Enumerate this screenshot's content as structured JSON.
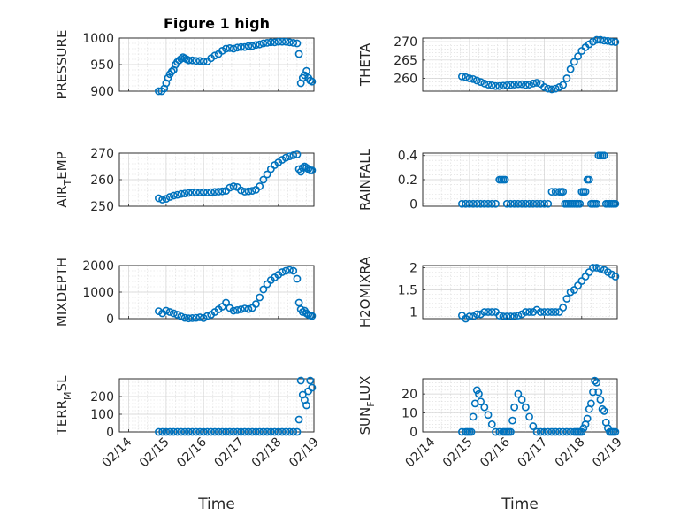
{
  "title": "Figure 1 high",
  "marker_color": "#0072BD",
  "xticks": [
    "02/14",
    "02/15",
    "02/16",
    "02/17",
    "02/18",
    "02/19"
  ],
  "xlabel": "Time",
  "chart_data": [
    {
      "type": "scatter",
      "ylabel": "PRESSURE",
      "xlim": [
        -0.25,
        4.95
      ],
      "ylim": [
        900,
        1000
      ],
      "yticks": [
        900,
        950,
        1000
      ],
      "x": [
        0.8,
        0.88,
        0.95,
        1.0,
        1.05,
        1.1,
        1.15,
        1.2,
        1.25,
        1.3,
        1.35,
        1.4,
        1.45,
        1.5,
        1.55,
        1.6,
        1.7,
        1.8,
        1.9,
        2.0,
        2.1,
        2.2,
        2.3,
        2.4,
        2.5,
        2.6,
        2.7,
        2.8,
        2.9,
        3.0,
        3.1,
        3.2,
        3.3,
        3.4,
        3.5,
        3.6,
        3.7,
        3.8,
        3.9,
        4.0,
        4.1,
        4.2,
        4.3,
        4.4,
        4.5,
        4.55,
        4.6,
        4.65,
        4.7,
        4.75,
        4.8,
        4.85,
        4.9
      ],
      "y": [
        900,
        900,
        905,
        915,
        925,
        932,
        937,
        940,
        950,
        955,
        958,
        961,
        964,
        962,
        960,
        958,
        958,
        957,
        957,
        956,
        956,
        962,
        967,
        970,
        976,
        980,
        981,
        980,
        982,
        983,
        983,
        985,
        985,
        987,
        988,
        990,
        991,
        992,
        992,
        993,
        993,
        993,
        992,
        991,
        990,
        970,
        915,
        925,
        930,
        938,
        925,
        920,
        918
      ]
    },
    {
      "type": "scatter",
      "ylabel": "THETA",
      "xlim": [
        -0.25,
        4.95
      ],
      "ylim": [
        256.5,
        271
      ],
      "yticks": [
        260,
        265,
        270
      ],
      "x": [
        0.8,
        0.9,
        1.0,
        1.1,
        1.2,
        1.3,
        1.4,
        1.5,
        1.6,
        1.7,
        1.8,
        1.9,
        2.0,
        2.1,
        2.2,
        2.3,
        2.4,
        2.5,
        2.6,
        2.7,
        2.8,
        2.9,
        3.0,
        3.1,
        3.2,
        3.3,
        3.4,
        3.5,
        3.6,
        3.7,
        3.8,
        3.9,
        4.0,
        4.1,
        4.2,
        4.3,
        4.4,
        4.5,
        4.6,
        4.7,
        4.8,
        4.9
      ],
      "y": [
        260.5,
        260.3,
        260.0,
        259.8,
        259.4,
        259.0,
        258.6,
        258.3,
        258.1,
        257.9,
        257.9,
        258.0,
        258.1,
        258.2,
        258.3,
        258.4,
        258.4,
        258.2,
        258.3,
        258.6,
        258.8,
        258.5,
        257.6,
        257.2,
        257.0,
        257.2,
        257.6,
        258.2,
        260.0,
        262.5,
        264.5,
        266.0,
        267.5,
        268.5,
        269.3,
        270.0,
        270.5,
        270.5,
        270.3,
        270.2,
        270.0,
        269.9
      ]
    },
    {
      "type": "scatter",
      "ylabel": "AIR_TEMP",
      "xlim": [
        -0.25,
        4.95
      ],
      "ylim": [
        250,
        270
      ],
      "yticks": [
        250,
        260,
        270
      ],
      "x": [
        0.8,
        0.9,
        1.0,
        1.1,
        1.2,
        1.3,
        1.4,
        1.5,
        1.6,
        1.7,
        1.8,
        1.9,
        2.0,
        2.1,
        2.2,
        2.3,
        2.4,
        2.5,
        2.6,
        2.7,
        2.8,
        2.9,
        3.0,
        3.1,
        3.2,
        3.3,
        3.4,
        3.5,
        3.6,
        3.7,
        3.8,
        3.9,
        4.0,
        4.1,
        4.2,
        4.3,
        4.4,
        4.5,
        4.55,
        4.6,
        4.65,
        4.7,
        4.75,
        4.8,
        4.85,
        4.9
      ],
      "y": [
        253,
        252.5,
        252.8,
        253.5,
        254,
        254.3,
        254.6,
        254.8,
        255,
        255.1,
        255.2,
        255.2,
        255.3,
        255.2,
        255.3,
        255.4,
        255.5,
        255.6,
        255.8,
        257,
        257.5,
        257.2,
        256,
        255.5,
        255.6,
        255.8,
        256.2,
        257.5,
        260,
        262,
        264,
        265.5,
        266.5,
        267.5,
        268.3,
        268.8,
        269.2,
        269.5,
        264,
        263,
        264.5,
        265,
        264.5,
        264,
        263.5,
        263.5
      ]
    },
    {
      "type": "scatter",
      "ylabel": "RAINFALL",
      "xlim": [
        -0.25,
        4.95
      ],
      "ylim": [
        -0.02,
        0.42
      ],
      "yticks": [
        0,
        0.2,
        0.4
      ],
      "x": [
        0.8,
        0.9,
        1.0,
        1.1,
        1.2,
        1.3,
        1.4,
        1.5,
        1.6,
        1.7,
        1.8,
        1.85,
        1.9,
        1.95,
        2.0,
        2.1,
        2.2,
        2.3,
        2.4,
        2.5,
        2.6,
        2.7,
        2.8,
        2.9,
        3.0,
        3.1,
        3.2,
        3.3,
        3.4,
        3.45,
        3.5,
        3.55,
        3.6,
        3.65,
        3.7,
        3.75,
        3.8,
        3.85,
        3.9,
        3.95,
        4.0,
        4.05,
        4.1,
        4.15,
        4.2,
        4.25,
        4.3,
        4.35,
        4.4,
        4.45,
        4.5,
        4.55,
        4.6,
        4.65,
        4.7,
        4.75,
        4.8,
        4.85,
        4.9
      ],
      "y": [
        0,
        0,
        0,
        0,
        0,
        0,
        0,
        0,
        0,
        0,
        0.2,
        0.2,
        0.2,
        0.2,
        0,
        0,
        0,
        0,
        0,
        0,
        0,
        0,
        0,
        0,
        0,
        0,
        0.1,
        0.1,
        0.1,
        0.1,
        0.1,
        0,
        0,
        0,
        0,
        0,
        0,
        0,
        0,
        0,
        0.1,
        0.1,
        0.1,
        0.2,
        0.2,
        0,
        0,
        0,
        0,
        0.4,
        0.4,
        0.4,
        0.4,
        0,
        0,
        0,
        0,
        0,
        0
      ]
    },
    {
      "type": "scatter",
      "ylabel": "MIXDEPTH",
      "xlim": [
        -0.25,
        4.95
      ],
      "ylim": [
        0,
        2000
      ],
      "yticks": [
        0,
        1000,
        2000
      ],
      "x": [
        0.8,
        0.9,
        1.0,
        1.1,
        1.2,
        1.3,
        1.4,
        1.5,
        1.6,
        1.7,
        1.8,
        1.9,
        2.0,
        2.1,
        2.2,
        2.3,
        2.4,
        2.5,
        2.6,
        2.7,
        2.8,
        2.9,
        3.0,
        3.1,
        3.2,
        3.3,
        3.4,
        3.5,
        3.6,
        3.7,
        3.8,
        3.9,
        4.0,
        4.1,
        4.2,
        4.3,
        4.4,
        4.5,
        4.55,
        4.6,
        4.65,
        4.7,
        4.75,
        4.8,
        4.85,
        4.9
      ],
      "y": [
        280,
        200,
        300,
        250,
        200,
        150,
        80,
        30,
        10,
        20,
        30,
        50,
        20,
        100,
        150,
        250,
        350,
        450,
        600,
        400,
        300,
        320,
        350,
        380,
        360,
        400,
        550,
        800,
        1100,
        1300,
        1450,
        1550,
        1650,
        1750,
        1800,
        1830,
        1800,
        1500,
        600,
        350,
        250,
        300,
        200,
        150,
        120,
        100
      ]
    },
    {
      "type": "scatter",
      "ylabel": "H2OMIXRA",
      "xlim": [
        -0.25,
        4.95
      ],
      "ylim": [
        0.85,
        2.05
      ],
      "yticks": [
        1,
        1.5,
        2
      ],
      "x": [
        0.8,
        0.9,
        1.0,
        1.1,
        1.2,
        1.3,
        1.4,
        1.5,
        1.6,
        1.7,
        1.8,
        1.9,
        2.0,
        2.1,
        2.2,
        2.3,
        2.4,
        2.5,
        2.6,
        2.7,
        2.8,
        2.9,
        3.0,
        3.1,
        3.2,
        3.3,
        3.4,
        3.5,
        3.6,
        3.7,
        3.8,
        3.9,
        4.0,
        4.1,
        4.2,
        4.3,
        4.4,
        4.5,
        4.6,
        4.7,
        4.8,
        4.9
      ],
      "y": [
        0.92,
        0.85,
        0.9,
        0.9,
        0.95,
        0.95,
        1.0,
        1.0,
        1.0,
        1.0,
        0.92,
        0.9,
        0.9,
        0.9,
        0.9,
        0.92,
        0.95,
        1.0,
        1.0,
        1.0,
        1.05,
        1.0,
        1.0,
        1.0,
        1.0,
        1.0,
        1.0,
        1.1,
        1.3,
        1.45,
        1.5,
        1.6,
        1.7,
        1.8,
        1.9,
        2.0,
        2.0,
        1.98,
        1.95,
        1.9,
        1.85,
        1.8
      ]
    },
    {
      "type": "scatter",
      "ylabel": "TERR_MSL",
      "xlim": [
        -0.25,
        4.95
      ],
      "ylim": [
        0,
        300
      ],
      "yticks": [
        0,
        100,
        200
      ],
      "x": [
        0.8,
        0.9,
        1.0,
        1.1,
        1.2,
        1.3,
        1.4,
        1.5,
        1.6,
        1.7,
        1.8,
        1.9,
        2.0,
        2.1,
        2.2,
        2.3,
        2.4,
        2.5,
        2.6,
        2.7,
        2.8,
        2.9,
        3.0,
        3.1,
        3.2,
        3.3,
        3.4,
        3.5,
        3.6,
        3.7,
        3.8,
        3.9,
        4.0,
        4.1,
        4.2,
        4.3,
        4.4,
        4.5,
        4.55,
        4.6,
        4.65,
        4.7,
        4.75,
        4.8,
        4.85,
        4.9
      ],
      "y": [
        0,
        0,
        0,
        0,
        0,
        0,
        0,
        0,
        0,
        0,
        0,
        0,
        0,
        0,
        0,
        0,
        0,
        0,
        0,
        0,
        0,
        0,
        0,
        0,
        0,
        0,
        0,
        0,
        0,
        0,
        0,
        0,
        0,
        0,
        0,
        0,
        0,
        0,
        70,
        290,
        210,
        180,
        150,
        230,
        290,
        250
      ]
    },
    {
      "type": "scatter",
      "ylabel": "SUN_FLUX",
      "xlim": [
        -0.25,
        4.95
      ],
      "ylim": [
        0,
        28
      ],
      "yticks": [
        0,
        10,
        20
      ],
      "x": [
        0.8,
        0.9,
        0.95,
        1.0,
        1.05,
        1.1,
        1.15,
        1.2,
        1.25,
        1.3,
        1.4,
        1.5,
        1.6,
        1.7,
        1.8,
        1.9,
        1.95,
        2.0,
        2.05,
        2.1,
        2.15,
        2.2,
        2.3,
        2.4,
        2.5,
        2.6,
        2.7,
        2.8,
        2.9,
        3.0,
        3.1,
        3.2,
        3.3,
        3.4,
        3.5,
        3.6,
        3.7,
        3.8,
        3.85,
        3.9,
        3.95,
        4.0,
        4.05,
        4.1,
        4.15,
        4.2,
        4.25,
        4.3,
        4.35,
        4.4,
        4.45,
        4.5,
        4.55,
        4.6,
        4.65,
        4.7,
        4.75,
        4.8,
        4.85,
        4.9
      ],
      "y": [
        0,
        0,
        0,
        0,
        0,
        8,
        15,
        22,
        20,
        16,
        13,
        9,
        4,
        0,
        0,
        0,
        0,
        0,
        0,
        0,
        6,
        13,
        20,
        17,
        13,
        8,
        3,
        0,
        0,
        0,
        0,
        0,
        0,
        0,
        0,
        0,
        0,
        0,
        0,
        0,
        0,
        0,
        2,
        4,
        7,
        12,
        15,
        21,
        27,
        26,
        21,
        17,
        12,
        11,
        5,
        2,
        0,
        0,
        0,
        0
      ]
    }
  ]
}
